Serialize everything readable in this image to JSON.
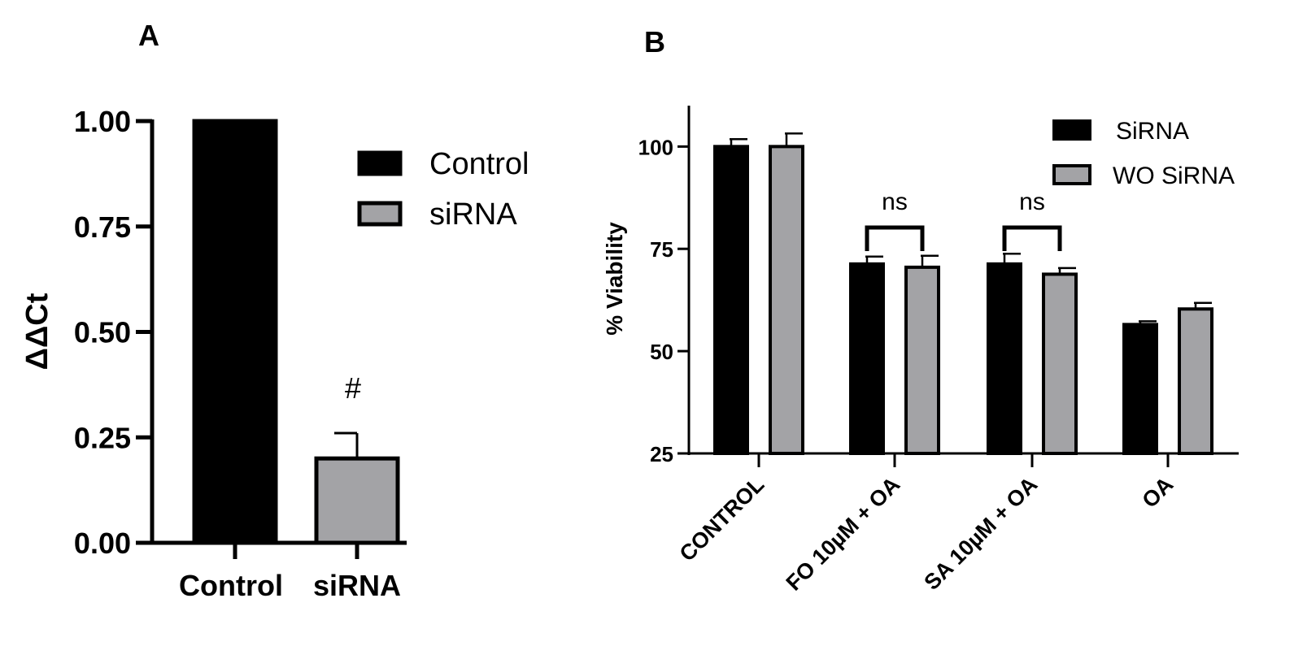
{
  "chart_data": [
    {
      "panel_label": "A",
      "type": "bar",
      "categories": [
        "Control",
        "siRNA"
      ],
      "series": [
        {
          "name": "Control",
          "values": [
            1.0,
            null
          ],
          "error": [
            0,
            null
          ],
          "color": "#000000"
        },
        {
          "name": "siRNA",
          "values": [
            null,
            0.2
          ],
          "error": [
            null,
            0.06
          ],
          "color": "#a3a3a6"
        }
      ],
      "ylabel": "ΔΔCt",
      "ylim": [
        0,
        1.0
      ],
      "yticks": [
        "0.00",
        "0.25",
        "0.50",
        "0.75",
        "1.00"
      ],
      "annotations": [
        {
          "category": "siRNA",
          "text": "#"
        }
      ],
      "legend": {
        "position": "top-right",
        "entries": [
          "Control",
          "siRNA"
        ]
      },
      "grid": false
    },
    {
      "panel_label": "B",
      "type": "bar",
      "categories": [
        "CONTROL",
        "FO 10µM + OA",
        "SA 10µM + OA",
        "OA"
      ],
      "series": [
        {
          "name": "SiRNA",
          "values": [
            100,
            71.3,
            71.3,
            56.5
          ],
          "error": [
            1.8,
            1.8,
            2.5,
            0.8
          ],
          "color": "#000000"
        },
        {
          "name": "WO SiRNA",
          "values": [
            100,
            70.5,
            68.8,
            60.3
          ],
          "error": [
            3.2,
            2.8,
            1.5,
            1.5
          ],
          "color": "#a3a3a6"
        }
      ],
      "ylabel": "% Viability",
      "ylim": [
        25,
        110
      ],
      "yticks": [
        "25",
        "50",
        "75",
        "100"
      ],
      "annotations": [
        {
          "category": "FO 10µM + OA",
          "text": "ns"
        },
        {
          "category": "SA 10µM + OA",
          "text": "ns"
        }
      ],
      "legend": {
        "position": "top-right",
        "entries": [
          "SiRNA",
          "WO SiRNA"
        ]
      },
      "grid": false
    }
  ]
}
